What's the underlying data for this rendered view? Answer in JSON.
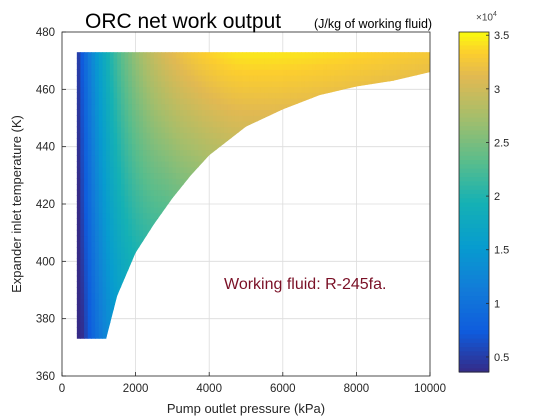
{
  "chart_data": {
    "type": "heatmap",
    "title": "ORC net work output",
    "subtitle": "(J/kg of working fluid)",
    "xlabel": "Pump outlet pressure (kPa)",
    "ylabel": "Expander inlet temperature (K)",
    "xlim": [
      0,
      10000
    ],
    "ylim": [
      360,
      480
    ],
    "xticks": [
      0,
      2000,
      4000,
      6000,
      8000,
      10000
    ],
    "yticks": [
      360,
      380,
      400,
      420,
      440,
      460,
      480
    ],
    "grid": true,
    "annotation": "Working fluid: R-245fa.",
    "colormap": "parula",
    "colorbar": {
      "range": [
        3600,
        35300
      ],
      "ticks": [
        5000,
        10000,
        15000,
        20000,
        25000,
        30000,
        35000
      ],
      "tick_labels": [
        "0.5",
        "1",
        "1.5",
        "2",
        "2.5",
        "3",
        "3.5"
      ],
      "exponent_label": "×10",
      "exponent": "4"
    },
    "domain": {
      "p_min": 400,
      "p_max": 10000,
      "t_min": 373,
      "t_max": 473,
      "saturation_boundary": [
        {
          "p": 400,
          "t": 373
        },
        {
          "p": 1200,
          "t": 373
        },
        {
          "p": 1500,
          "t": 388
        },
        {
          "p": 2000,
          "t": 403
        },
        {
          "p": 2500,
          "t": 413
        },
        {
          "p": 3000,
          "t": 422
        },
        {
          "p": 3500,
          "t": 430
        },
        {
          "p": 4000,
          "t": 437
        },
        {
          "p": 5000,
          "t": 447
        },
        {
          "p": 6000,
          "t": 453
        },
        {
          "p": 7000,
          "t": 458
        },
        {
          "p": 8000,
          "t": 461
        },
        {
          "p": 9000,
          "t": 463
        },
        {
          "p": 10000,
          "t": 466
        }
      ]
    },
    "value_samples": [
      {
        "p": 400,
        "t": 373,
        "value": 4000
      },
      {
        "p": 400,
        "t": 473,
        "value": 4000
      },
      {
        "p": 1000,
        "t": 473,
        "value": 22000
      },
      {
        "p": 1000,
        "t": 380,
        "value": 14000
      },
      {
        "p": 2000,
        "t": 473,
        "value": 31000
      },
      {
        "p": 2000,
        "t": 410,
        "value": 22000
      },
      {
        "p": 3500,
        "t": 473,
        "value": 34500
      },
      {
        "p": 4000,
        "t": 445,
        "value": 29000
      },
      {
        "p": 6000,
        "t": 473,
        "value": 35000
      },
      {
        "p": 6000,
        "t": 458,
        "value": 30000
      },
      {
        "p": 10000,
        "t": 473,
        "value": 33000
      },
      {
        "p": 10000,
        "t": 467,
        "value": 29000
      }
    ]
  }
}
